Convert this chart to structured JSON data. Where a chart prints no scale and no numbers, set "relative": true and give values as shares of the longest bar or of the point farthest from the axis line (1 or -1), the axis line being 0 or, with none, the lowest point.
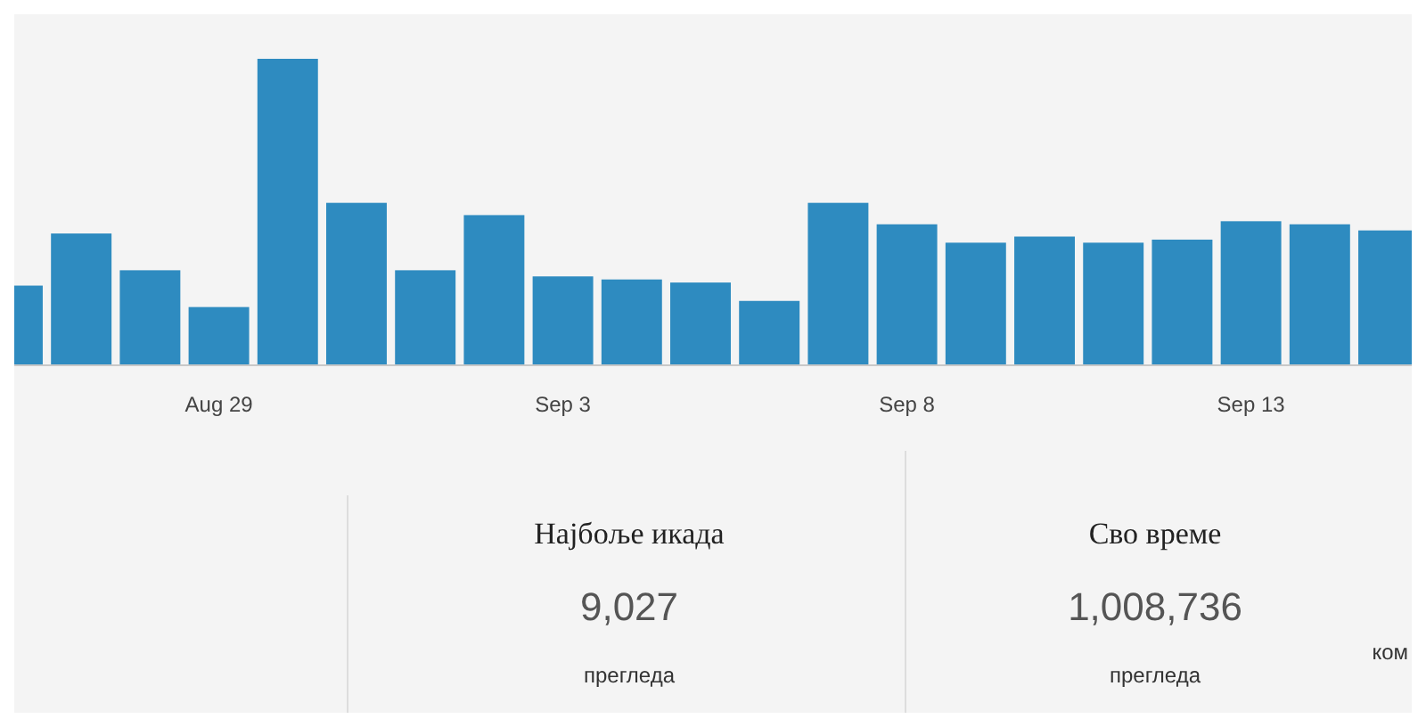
{
  "chart_data": [
    {
      "type": "bar",
      "relative": true,
      "color": "#2e8bc0",
      "categories": [
        null,
        null,
        null,
        "Aug 29",
        null,
        null,
        null,
        null,
        "Sep 3",
        null,
        null,
        null,
        null,
        "Sep 8",
        null,
        null,
        null,
        null,
        "Sep 13",
        null,
        null
      ],
      "values": [
        0.26,
        0.43,
        0.31,
        0.19,
        1,
        0.53,
        0.31,
        0.49,
        0.29,
        0.28,
        0.27,
        0.21,
        0.53,
        0.46,
        0.4,
        0.42,
        0.4,
        0.41,
        0.47,
        0.46,
        0.44
      ]
    },
    {
      "type": "other",
      "annotations": [
        "Најбоље икада",
        "9,027",
        "прегледа",
        "Сво време",
        "1,008,736",
        "прегледа",
        "ком"
      ]
    }
  ]
}
